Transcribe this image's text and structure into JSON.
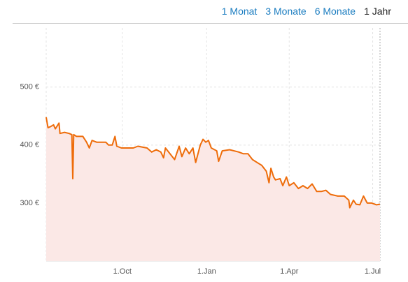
{
  "range_buttons": [
    "1 Monat",
    "3 Monate",
    "6 Monate",
    "1 Jahr"
  ],
  "chart_data": {
    "type": "area",
    "x": [
      0,
      2,
      5,
      8,
      10,
      14,
      15,
      20,
      25,
      28,
      29,
      30,
      33,
      40,
      44,
      47,
      50,
      55,
      60,
      65,
      68,
      72,
      75,
      77,
      82,
      90,
      95,
      100,
      110,
      115,
      120,
      125,
      128,
      130,
      135,
      140,
      145,
      148,
      152,
      156,
      160,
      163,
      168,
      171,
      174,
      177,
      180,
      186,
      188,
      192,
      200,
      210,
      215,
      220,
      225,
      230,
      235,
      240,
      243,
      245,
      248,
      250,
      255,
      258,
      262,
      265,
      270,
      275,
      280,
      285,
      290,
      295,
      300,
      305,
      310,
      318,
      325,
      330,
      331,
      335,
      338,
      342,
      346,
      350,
      355,
      360,
      364
    ],
    "series": [
      {
        "color": "#ee6c0a",
        "fill": "#fbe8e6",
        "values": [
          448,
          430,
          432,
          435,
          428,
          438,
          420,
          422,
          420,
          418,
          342,
          418,
          415,
          415,
          405,
          395,
          408,
          405,
          405,
          405,
          400,
          400,
          415,
          398,
          395,
          395,
          395,
          398,
          395,
          388,
          392,
          388,
          378,
          395,
          385,
          375,
          398,
          380,
          395,
          385,
          395,
          370,
          400,
          410,
          405,
          408,
          395,
          390,
          372,
          390,
          392,
          388,
          385,
          385,
          375,
          370,
          365,
          355,
          335,
          360,
          345,
          340,
          342,
          330,
          345,
          330,
          335,
          325,
          330,
          325,
          333,
          320,
          320,
          322,
          315,
          312,
          312,
          305,
          292,
          305,
          298,
          297,
          312,
          300,
          300,
          297,
          298
        ]
      }
    ],
    "xlim": [
      0,
      364
    ],
    "xticks": [
      {
        "value": 83,
        "label": "1.Oct"
      },
      {
        "value": 175,
        "label": "1.Jan"
      },
      {
        "value": 265,
        "label": "1.Apr"
      },
      {
        "value": 356,
        "label": "1.Jul"
      }
    ],
    "ylim": [
      200,
      602
    ],
    "yticks": [
      {
        "value": 300,
        "label": "300 €"
      },
      {
        "value": 400,
        "label": "400 €"
      },
      {
        "value": 500,
        "label": "500 €"
      }
    ],
    "grid": true
  }
}
